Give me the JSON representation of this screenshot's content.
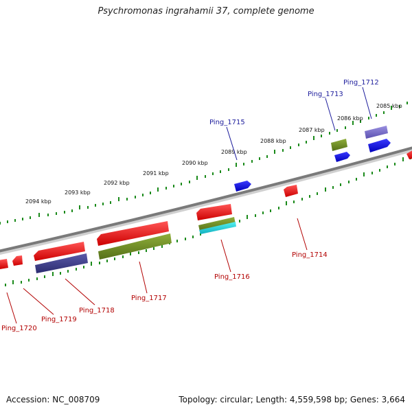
{
  "title": "Psychromonas ingrahamii 37, complete genome",
  "footer": {
    "accession": "Accession: NC_008709",
    "stats": "Topology: circular; Length: 4,559,598 bp; Genes: 3,664"
  },
  "ruler_labels": [
    "2085 kbp",
    "2086 kbp",
    "2087 kbp",
    "2088 kbp",
    "2089 kbp",
    "2090 kbp",
    "2091 kbp",
    "2092 kbp",
    "2093 kbp",
    "2094 kbp"
  ],
  "genes": [
    {
      "name": "Ping_1712",
      "strand": "forward",
      "color": "#7b6fd0"
    },
    {
      "name": "Ping_1713",
      "strand": "forward",
      "color": "#6b8e23"
    },
    {
      "name": "Ping_1714",
      "strand": "reverse",
      "color": "#ee1111"
    },
    {
      "name": "Ping_1715",
      "strand": "forward",
      "color": "#1111dd"
    },
    {
      "name": "Ping_1716",
      "strand": "reverse",
      "color": "#6b8e23"
    },
    {
      "name": "Ping_1717",
      "strand": "reverse",
      "color": "#6b8e23"
    },
    {
      "name": "Ping_1718",
      "strand": "reverse",
      "color": "#3f3f8f"
    },
    {
      "name": "Ping_1719",
      "strand": "reverse",
      "color": "#ee1111"
    },
    {
      "name": "Ping_1720",
      "strand": "reverse",
      "color": "#ee1111"
    }
  ],
  "colors": {
    "backbone": "#8a8a8a",
    "ruler_ticks": "#1a8a1a",
    "label_forward": "#1c1c9c",
    "label_reverse": "#b20000"
  }
}
